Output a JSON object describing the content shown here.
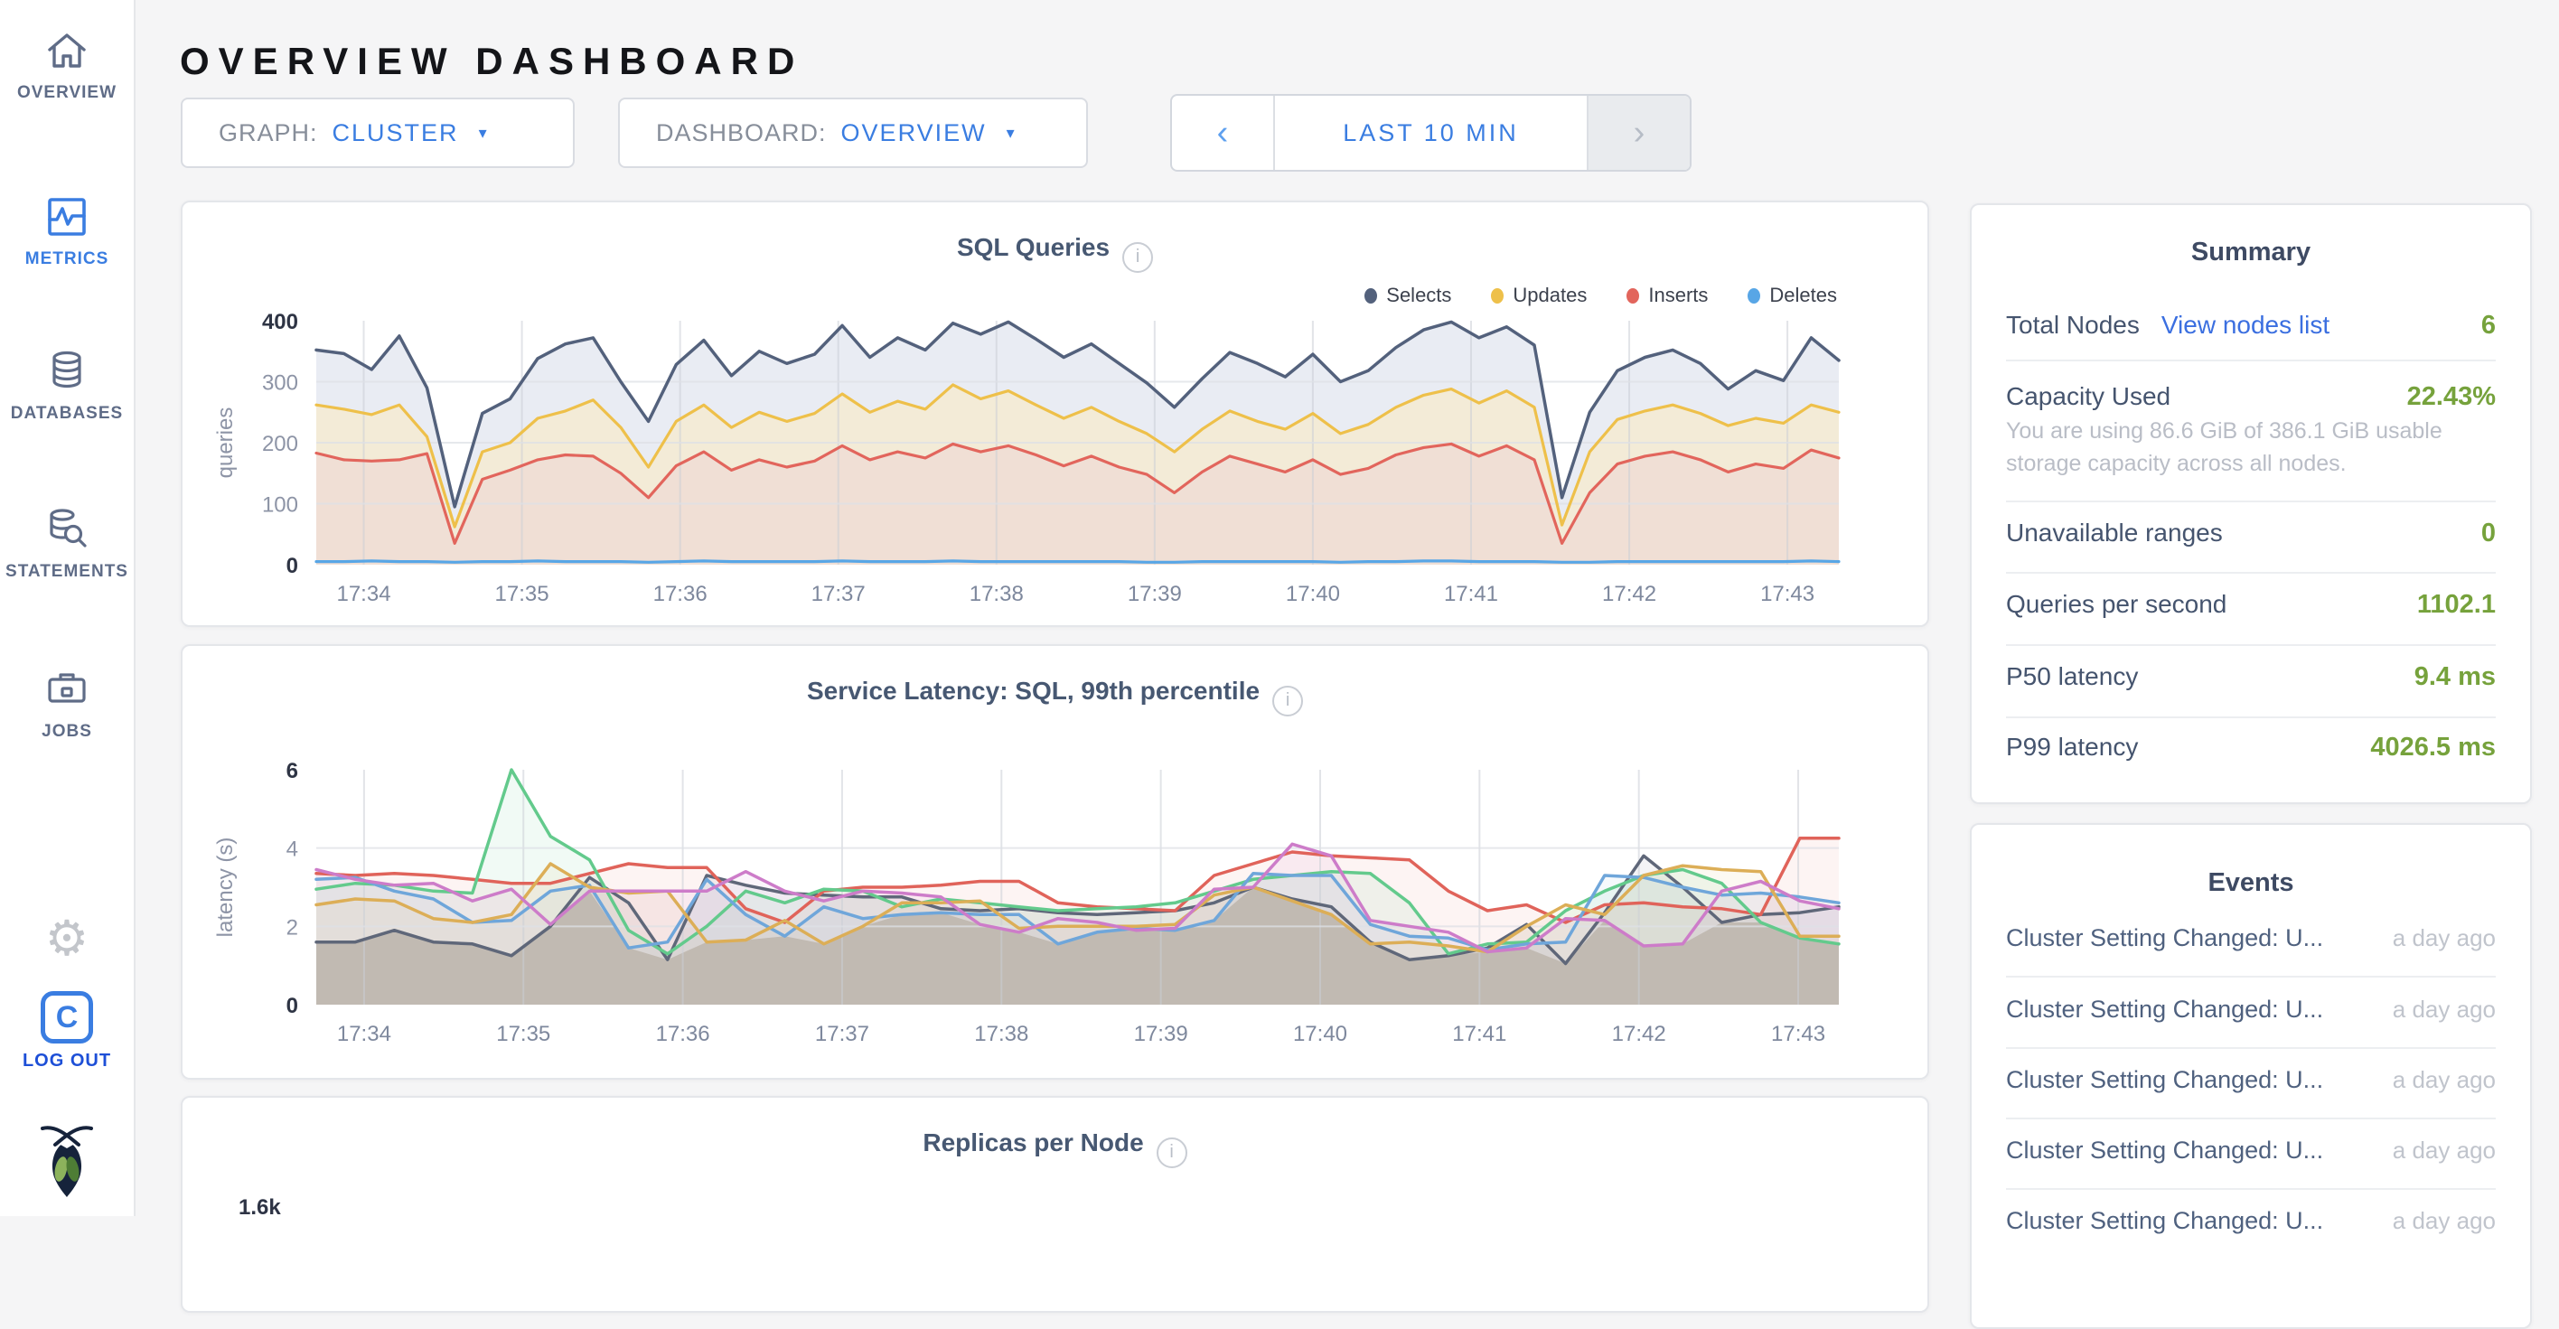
{
  "header": {
    "title": "OVERVIEW DASHBOARD"
  },
  "sidebar": {
    "items": [
      {
        "label": "OVERVIEW"
      },
      {
        "label": "METRICS",
        "active": true
      },
      {
        "label": "DATABASES"
      },
      {
        "label": "STATEMENTS"
      },
      {
        "label": "JOBS"
      }
    ],
    "logout_label": "LOG OUT",
    "logo_letter": "C"
  },
  "controls": {
    "graph_label": "GRAPH:",
    "graph_value": "CLUSTER",
    "dashboard_label": "DASHBOARD:",
    "dashboard_value": "OVERVIEW",
    "time_range": "LAST 10 MIN",
    "prev": "‹",
    "next": "›",
    "caret": "▾"
  },
  "colors": {
    "accent_blue": "#3a7de1",
    "active_green": "#76a23c",
    "link_blue": "#3b6fe0",
    "title_slate": "#475872"
  },
  "chart_data": [
    {
      "type": "area",
      "title": "SQL Queries",
      "ylabel": "queries",
      "ylim": [
        0,
        400
      ],
      "y_ticks": [
        0,
        100,
        200,
        300,
        400
      ],
      "y_gridlines": [
        100,
        200,
        300
      ],
      "x_start": 33.7,
      "x_step": 0.175,
      "x_ticks": [
        {
          "v": 34,
          "label": "17:34"
        },
        {
          "v": 35,
          "label": "17:35"
        },
        {
          "v": 36,
          "label": "17:36"
        },
        {
          "v": 37,
          "label": "17:37"
        },
        {
          "v": 38,
          "label": "17:38"
        },
        {
          "v": 39,
          "label": "17:39"
        },
        {
          "v": 40,
          "label": "17:40"
        },
        {
          "v": 41,
          "label": "17:41"
        },
        {
          "v": 42,
          "label": "17:42"
        },
        {
          "v": 43,
          "label": "17:43"
        }
      ],
      "legend_position": "top-right",
      "series": [
        {
          "name": "Selects",
          "color": "#53617c",
          "fill": "#e9ecf3",
          "width": 3.5,
          "values": [
            352,
            346,
            320,
            375,
            290,
            95,
            248,
            272,
            338,
            362,
            372,
            300,
            235,
            328,
            368,
            310,
            350,
            330,
            345,
            392,
            340,
            372,
            352,
            396,
            378,
            398,
            370,
            340,
            362,
            330,
            298,
            258,
            305,
            348,
            330,
            308,
            345,
            300,
            318,
            356,
            385,
            398,
            372,
            390,
            360,
            110,
            250,
            318,
            340,
            352,
            330,
            288,
            318,
            302,
            372,
            335
          ]
        },
        {
          "name": "Updates",
          "color": "#eec04a",
          "fill": "#f3ebd7",
          "width": 3.2,
          "values": [
            262,
            255,
            246,
            262,
            210,
            62,
            185,
            200,
            240,
            252,
            270,
            225,
            160,
            235,
            262,
            225,
            250,
            235,
            248,
            280,
            250,
            268,
            255,
            295,
            272,
            285,
            262,
            240,
            258,
            235,
            215,
            185,
            222,
            252,
            235,
            222,
            248,
            215,
            230,
            258,
            278,
            288,
            265,
            285,
            258,
            65,
            185,
            238,
            252,
            262,
            248,
            228,
            240,
            232,
            262,
            250
          ]
        },
        {
          "name": "Inserts",
          "color": "#e2655c",
          "fill": "#f0dfd5",
          "width": 3.2,
          "values": [
            183,
            172,
            170,
            172,
            182,
            35,
            140,
            155,
            172,
            180,
            178,
            150,
            110,
            162,
            185,
            155,
            172,
            160,
            170,
            195,
            172,
            185,
            175,
            198,
            185,
            195,
            180,
            162,
            178,
            160,
            148,
            118,
            152,
            178,
            165,
            152,
            172,
            148,
            158,
            180,
            192,
            198,
            178,
            195,
            172,
            35,
            118,
            165,
            178,
            185,
            172,
            152,
            165,
            158,
            188,
            175
          ]
        },
        {
          "name": "Deletes",
          "color": "#58a6e6",
          "fill": "none",
          "width": 3.2,
          "values": [
            5,
            5,
            6,
            5,
            5,
            4,
            5,
            5,
            6,
            5,
            5,
            5,
            4,
            5,
            6,
            5,
            5,
            5,
            5,
            6,
            5,
            5,
            5,
            6,
            5,
            5,
            5,
            5,
            5,
            5,
            4,
            4,
            5,
            5,
            5,
            5,
            5,
            4,
            5,
            5,
            6,
            6,
            5,
            5,
            5,
            4,
            4,
            5,
            5,
            5,
            5,
            5,
            5,
            5,
            6,
            5
          ]
        }
      ]
    },
    {
      "type": "line",
      "title": "Service Latency: SQL, 99th percentile",
      "ylabel": "latency (s)",
      "ylim": [
        0,
        6
      ],
      "y_ticks": [
        0,
        2,
        4,
        6
      ],
      "y_gridlines": [
        2,
        4
      ],
      "x_start": 33.7,
      "x_step": 0.245,
      "envelope_fill": "#d6d2c7",
      "x_ticks": [
        {
          "v": 34,
          "label": "17:34"
        },
        {
          "v": 35,
          "label": "17:35"
        },
        {
          "v": 36,
          "label": "17:36"
        },
        {
          "v": 37,
          "label": "17:37"
        },
        {
          "v": 38,
          "label": "17:38"
        },
        {
          "v": 39,
          "label": "17:39"
        },
        {
          "v": 40,
          "label": "17:40"
        },
        {
          "v": 41,
          "label": "17:41"
        },
        {
          "v": 42,
          "label": "17:42"
        },
        {
          "v": 43,
          "label": "17:43"
        }
      ],
      "series": [
        {
          "name": "series-1",
          "color": "#5f6779",
          "fill": "rgba(95,103,121,0.07)",
          "width": 3.5,
          "values": [
            1.6,
            1.6,
            1.9,
            1.6,
            1.55,
            1.25,
            2.0,
            3.25,
            2.6,
            1.15,
            3.3,
            3.05,
            2.85,
            2.8,
            2.75,
            2.75,
            2.45,
            2.4,
            2.45,
            2.35,
            2.3,
            2.35,
            2.4,
            2.6,
            3.0,
            2.7,
            2.5,
            1.6,
            1.15,
            1.25,
            1.45,
            2.05,
            1.05,
            2.35,
            3.8,
            3.0,
            2.1,
            2.3,
            2.35,
            2.5
          ]
        },
        {
          "name": "series-2",
          "color": "#e0635a",
          "fill": "rgba(224,99,90,0.07)",
          "width": 3.5,
          "values": [
            3.35,
            3.3,
            3.35,
            3.3,
            3.2,
            3.1,
            3.1,
            3.35,
            3.6,
            3.5,
            3.5,
            2.45,
            2.1,
            2.9,
            3.0,
            3.0,
            3.05,
            3.15,
            3.15,
            2.6,
            2.5,
            2.45,
            2.4,
            3.3,
            3.6,
            3.9,
            3.8,
            3.75,
            3.7,
            2.9,
            2.4,
            2.55,
            2.1,
            2.55,
            2.6,
            2.5,
            2.45,
            2.3,
            4.25,
            4.25
          ]
        },
        {
          "name": "series-3",
          "color": "#63ca8c",
          "fill": "rgba(99,202,140,0.09)",
          "width": 3.5,
          "values": [
            2.95,
            3.1,
            3.05,
            2.9,
            2.85,
            6.0,
            4.3,
            3.7,
            1.9,
            1.3,
            2.0,
            2.9,
            2.6,
            2.95,
            2.9,
            2.5,
            2.7,
            2.6,
            2.5,
            2.4,
            2.45,
            2.5,
            2.6,
            2.9,
            3.2,
            3.3,
            3.4,
            3.35,
            2.6,
            1.3,
            1.55,
            1.6,
            2.4,
            2.9,
            3.3,
            3.45,
            3.1,
            2.1,
            1.7,
            1.55
          ]
        },
        {
          "name": "series-4",
          "color": "#6fa6da",
          "fill": "rgba(111,166,218,0.07)",
          "width": 3.5,
          "values": [
            3.2,
            3.25,
            2.9,
            2.7,
            2.1,
            2.15,
            2.9,
            3.05,
            1.45,
            1.6,
            3.2,
            2.3,
            1.75,
            2.5,
            2.2,
            2.3,
            2.35,
            2.3,
            2.3,
            1.55,
            1.85,
            1.95,
            1.9,
            2.15,
            3.35,
            3.3,
            3.3,
            2.05,
            1.75,
            1.7,
            1.4,
            1.55,
            1.6,
            3.3,
            3.25,
            3.0,
            2.8,
            2.85,
            2.75,
            2.6
          ]
        },
        {
          "name": "series-5",
          "color": "#dcae57",
          "fill": "rgba(220,174,87,0.08)",
          "width": 3.5,
          "values": [
            2.55,
            2.7,
            2.65,
            2.2,
            2.1,
            2.3,
            3.6,
            3.0,
            2.85,
            2.9,
            1.6,
            1.65,
            2.15,
            1.55,
            2.0,
            2.6,
            2.6,
            2.65,
            1.95,
            2.0,
            2.0,
            2.0,
            2.05,
            2.8,
            3.0,
            2.65,
            2.3,
            1.55,
            1.6,
            1.5,
            1.35,
            2.0,
            2.55,
            2.3,
            3.3,
            3.55,
            3.45,
            3.4,
            1.75,
            1.75
          ]
        },
        {
          "name": "series-6",
          "color": "#cd7cc9",
          "fill": "rgba(205,124,201,0.08)",
          "width": 3.5,
          "values": [
            3.45,
            3.2,
            3.05,
            3.1,
            2.65,
            2.95,
            2.05,
            2.9,
            2.9,
            2.9,
            2.9,
            3.4,
            2.9,
            2.65,
            2.9,
            2.85,
            2.75,
            2.05,
            1.85,
            2.2,
            2.1,
            1.9,
            1.95,
            2.95,
            3.0,
            4.1,
            3.8,
            2.15,
            2.0,
            1.85,
            1.35,
            1.45,
            2.2,
            2.15,
            1.5,
            1.55,
            2.9,
            3.15,
            2.65,
            2.45
          ]
        }
      ]
    },
    {
      "type": "area",
      "title": "Replicas per Node",
      "first_y_tick_partial": "1.6k"
    }
  ],
  "summary": {
    "title": "Summary",
    "rows": [
      {
        "label": "Total Nodes",
        "link": "View nodes list",
        "value": "6"
      },
      {
        "label": "Capacity Used",
        "value": "22.43%",
        "note": "You are using 86.6 GiB of 386.1 GiB usable storage capacity across all nodes."
      },
      {
        "label": "Unavailable ranges",
        "value": "0"
      },
      {
        "label": "Queries per second",
        "value": "1102.1"
      },
      {
        "label": "P50 latency",
        "value": "9.4 ms"
      },
      {
        "label": "P99 latency",
        "value": "4026.5 ms"
      }
    ]
  },
  "events": {
    "title": "Events",
    "items": [
      {
        "title": "Cluster Setting Changed: U...",
        "time": "a day ago"
      },
      {
        "title": "Cluster Setting Changed: U...",
        "time": "a day ago"
      },
      {
        "title": "Cluster Setting Changed: U...",
        "time": "a day ago"
      },
      {
        "title": "Cluster Setting Changed: U...",
        "time": "a day ago"
      },
      {
        "title": "Cluster Setting Changed: U...",
        "time": "a day ago"
      }
    ]
  }
}
